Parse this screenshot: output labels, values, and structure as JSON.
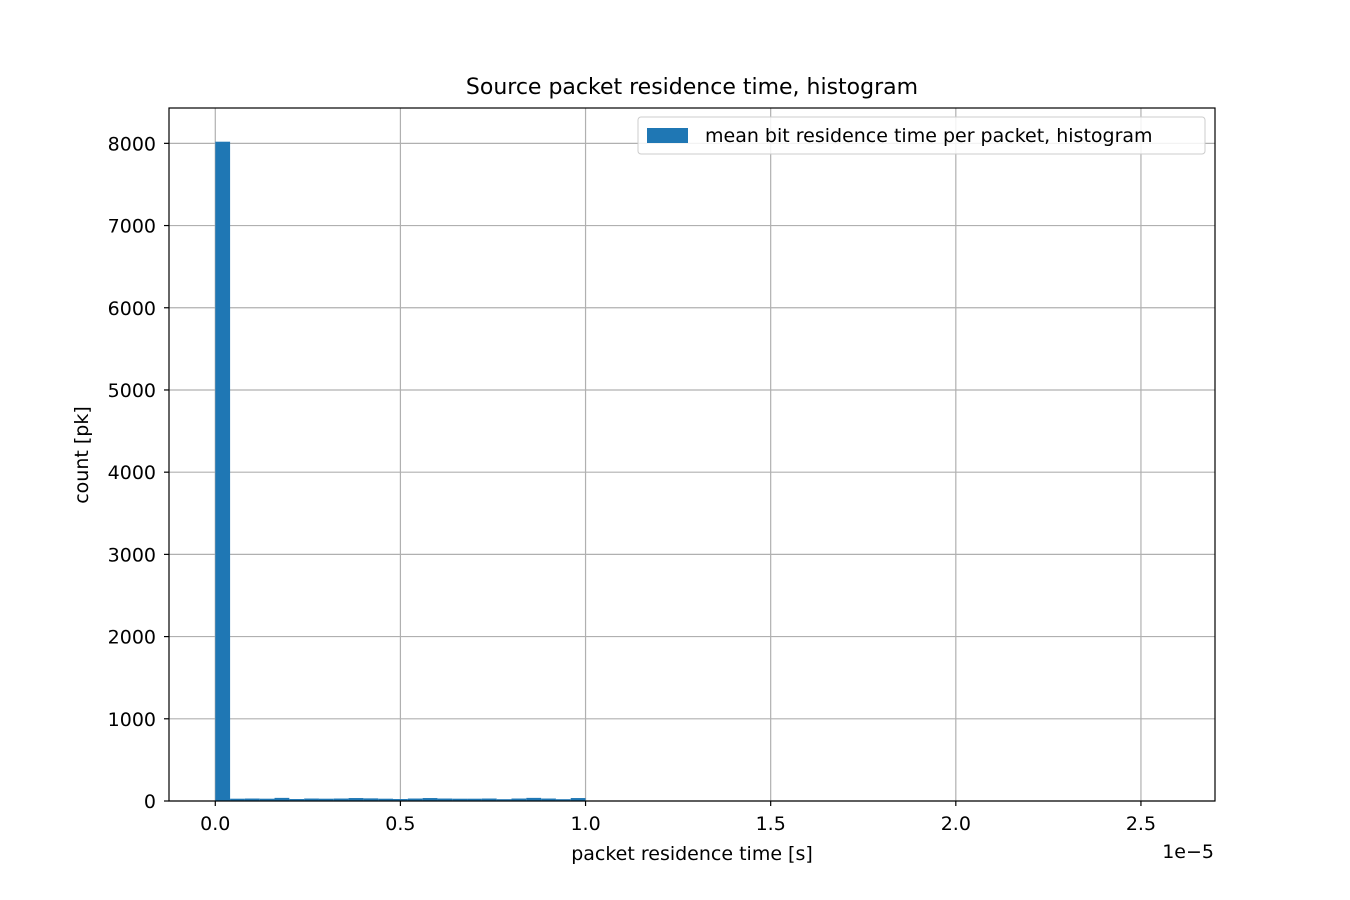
{
  "chart_data": {
    "type": "bar",
    "title": "Source packet residence time, histogram",
    "xlabel": "packet residence time [s]",
    "ylabel": "count [pk]",
    "x_offset_label": "1e−5",
    "xlim": [
      -0.125,
      2.7
    ],
    "ylim": [
      0,
      8430
    ],
    "x_ticks": [
      0.0,
      0.5,
      1.0,
      1.5,
      2.0,
      2.5
    ],
    "x_tick_labels": [
      "0.0",
      "0.5",
      "1.0",
      "1.5",
      "2.0",
      "2.5"
    ],
    "y_ticks": [
      0,
      1000,
      2000,
      3000,
      4000,
      5000,
      6000,
      7000,
      8000
    ],
    "y_tick_labels": [
      "0",
      "1000",
      "2000",
      "3000",
      "4000",
      "5000",
      "6000",
      "7000",
      "8000"
    ],
    "grid": true,
    "legend_position": "top-right",
    "series": [
      {
        "name": "mean bit residence time per packet, histogram",
        "color": "#1f77b4",
        "bin_edges": [
          0.0,
          0.04,
          0.08,
          0.12,
          0.16,
          0.2,
          0.24,
          0.28,
          0.32,
          0.36,
          0.4,
          0.44,
          0.48,
          0.52,
          0.56,
          0.6,
          0.64,
          0.68,
          0.72,
          0.76,
          0.8,
          0.84,
          0.88,
          0.92,
          0.96,
          1.0
        ],
        "values": [
          8020,
          28,
          30,
          28,
          38,
          24,
          30,
          28,
          30,
          36,
          32,
          28,
          24,
          30,
          36,
          30,
          28,
          28,
          30,
          22,
          30,
          38,
          30,
          22,
          36
        ]
      }
    ]
  }
}
